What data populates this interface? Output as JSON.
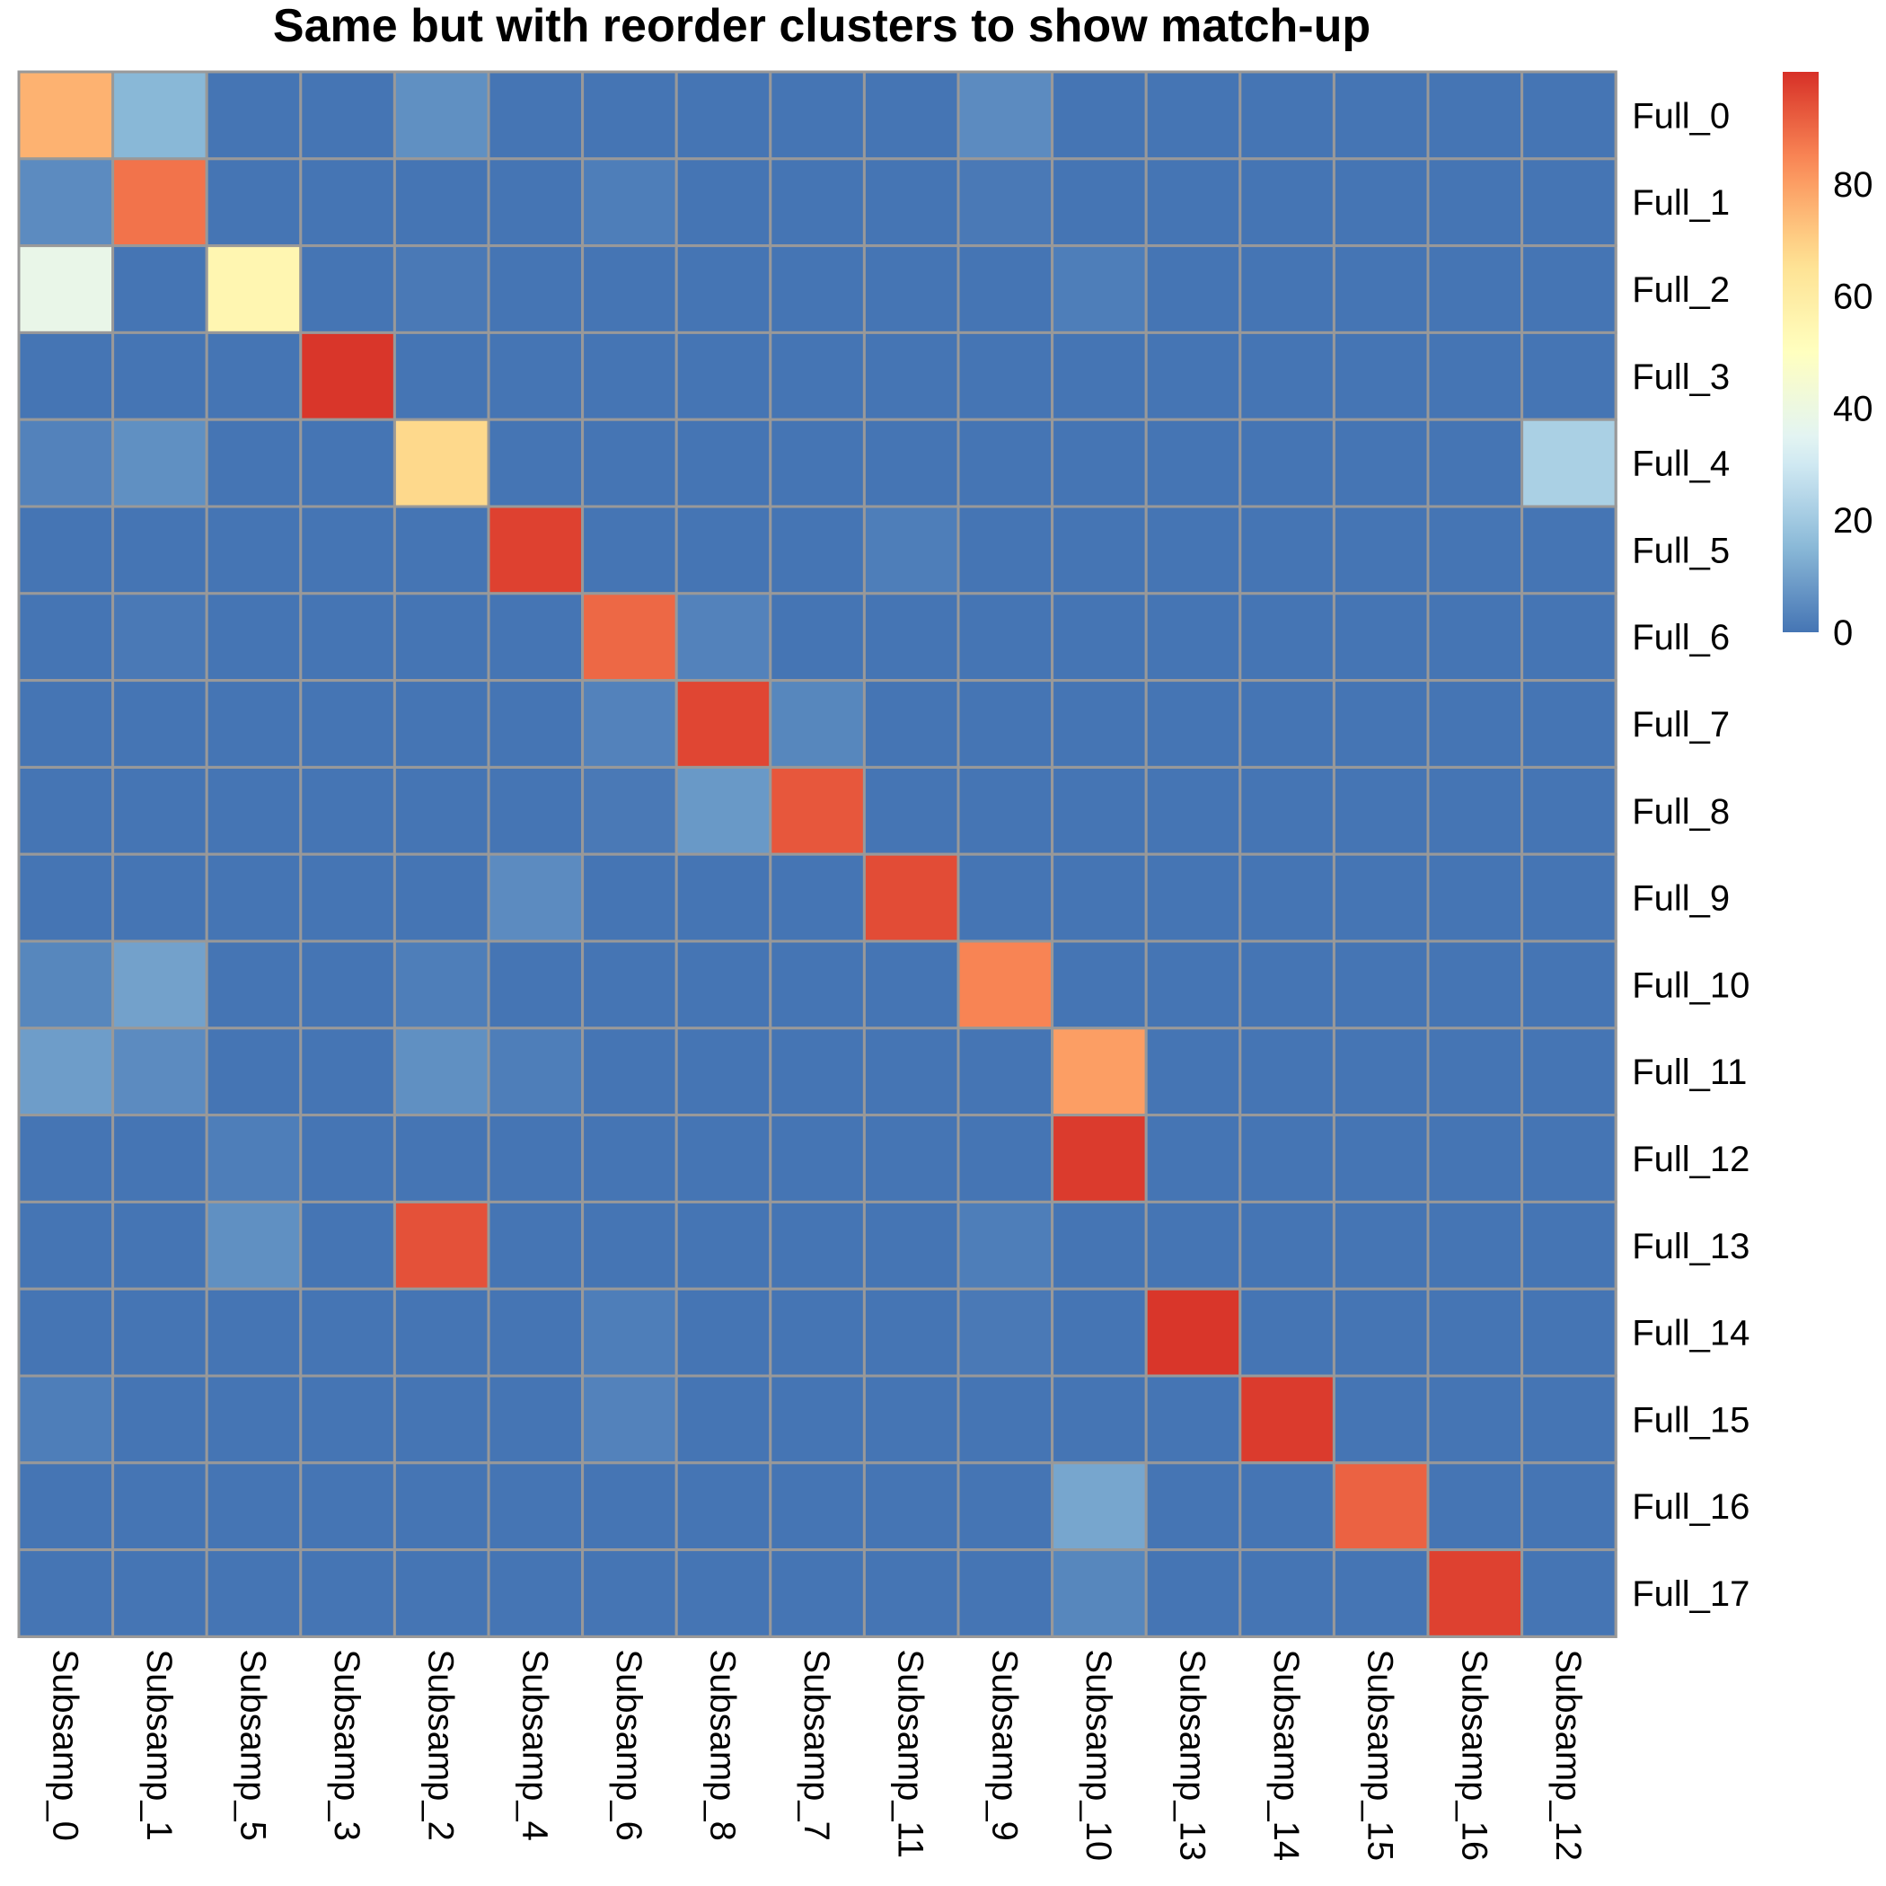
{
  "chart_data": {
    "type": "heatmap",
    "title": "Same but with reorder clusters to show match-up",
    "rows": [
      "Full_0",
      "Full_1",
      "Full_2",
      "Full_3",
      "Full_4",
      "Full_5",
      "Full_6",
      "Full_7",
      "Full_8",
      "Full_9",
      "Full_10",
      "Full_11",
      "Full_12",
      "Full_13",
      "Full_14",
      "Full_15",
      "Full_16",
      "Full_17"
    ],
    "columns": [
      "Subsamp_0",
      "Subsamp_1",
      "Subsamp_5",
      "Subsamp_3",
      "Subsamp_2",
      "Subsamp_4",
      "Subsamp_6",
      "Subsamp_8",
      "Subsamp_7",
      "Subsamp_11",
      "Subsamp_9",
      "Subsamp_10",
      "Subsamp_13",
      "Subsamp_14",
      "Subsamp_15",
      "Subsamp_16",
      "Subsamp_12"
    ],
    "values": [
      [
        76,
        15,
        0,
        0,
        6,
        0,
        0,
        0,
        0,
        0,
        5,
        0,
        0,
        0,
        0,
        0,
        0
      ],
      [
        5,
        88,
        0,
        0,
        0,
        0,
        2,
        0,
        0,
        0,
        1,
        0,
        0,
        0,
        0,
        0,
        0
      ],
      [
        38,
        0,
        55,
        0,
        1,
        0,
        0,
        0,
        0,
        0,
        0,
        2,
        0,
        0,
        0,
        0,
        0
      ],
      [
        0,
        0,
        0,
        99,
        0,
        0,
        0,
        0,
        0,
        0,
        0,
        0,
        0,
        0,
        0,
        0,
        0
      ],
      [
        3,
        6,
        0,
        0,
        68,
        0,
        0,
        0,
        0,
        0,
        0,
        0,
        0,
        0,
        0,
        0,
        22
      ],
      [
        0,
        0,
        0,
        0,
        0,
        97,
        0,
        0,
        0,
        2,
        0,
        0,
        0,
        0,
        0,
        0,
        0
      ],
      [
        0,
        1,
        0,
        0,
        0,
        0,
        90,
        3,
        0,
        0,
        0,
        0,
        0,
        0,
        0,
        0,
        0
      ],
      [
        0,
        0,
        0,
        0,
        0,
        0,
        3,
        96,
        4,
        0,
        0,
        0,
        0,
        0,
        0,
        0,
        0
      ],
      [
        0,
        0,
        0,
        0,
        0,
        0,
        1,
        8,
        93,
        0,
        0,
        0,
        0,
        0,
        0,
        0,
        0
      ],
      [
        0,
        0,
        0,
        0,
        0,
        5,
        0,
        0,
        0,
        95,
        0,
        0,
        0,
        0,
        0,
        0,
        0
      ],
      [
        4,
        10,
        0,
        0,
        2,
        0,
        0,
        0,
        0,
        0,
        85,
        0,
        0,
        0,
        0,
        0,
        0
      ],
      [
        9,
        5,
        0,
        0,
        6,
        2,
        0,
        0,
        0,
        0,
        0,
        80,
        0,
        0,
        0,
        0,
        0
      ],
      [
        0,
        0,
        2,
        0,
        0,
        0,
        0,
        0,
        0,
        0,
        0,
        98,
        0,
        0,
        0,
        0,
        0
      ],
      [
        0,
        0,
        6,
        0,
        94,
        0,
        0,
        0,
        0,
        0,
        2,
        0,
        0,
        0,
        0,
        0,
        0
      ],
      [
        0,
        0,
        0,
        0,
        0,
        0,
        2,
        0,
        0,
        0,
        1,
        0,
        99,
        0,
        0,
        0,
        0
      ],
      [
        2,
        0,
        0,
        0,
        0,
        0,
        3,
        0,
        0,
        0,
        0,
        0,
        0,
        98,
        0,
        0,
        0
      ],
      [
        0,
        0,
        0,
        0,
        0,
        0,
        0,
        0,
        0,
        0,
        0,
        11,
        0,
        0,
        91,
        0,
        0
      ],
      [
        0,
        0,
        0,
        0,
        0,
        0,
        0,
        0,
        0,
        0,
        0,
        4,
        0,
        0,
        0,
        97,
        0
      ]
    ],
    "value_range": [
      0,
      100
    ],
    "legend": {
      "ticks": [
        0,
        20,
        40,
        60,
        80
      ],
      "position": "right"
    },
    "colors": {
      "palette": [
        "#4575b4",
        "#91bfdb",
        "#e0f3f8",
        "#ffffbf",
        "#fee090",
        "#fc8d59",
        "#d73027"
      ],
      "grid": "#999999",
      "border": "#999999"
    },
    "grid": true,
    "xlabel": "",
    "ylabel": ""
  }
}
